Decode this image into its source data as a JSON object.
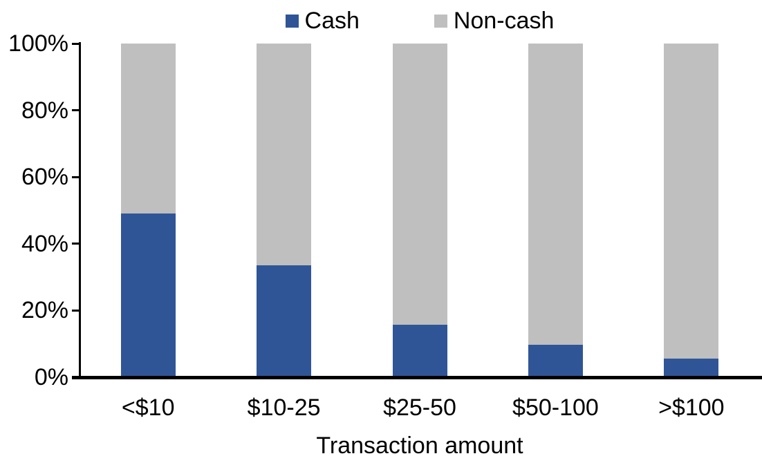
{
  "chart_data": {
    "type": "bar",
    "stacked": true,
    "percent_stacked": true,
    "title": "",
    "xlabel": "Transaction amount",
    "ylabel": "",
    "categories": [
      "<$10",
      "$10-25",
      "$25-50",
      "$50-100",
      ">$100"
    ],
    "series": [
      {
        "name": "Cash",
        "color": "#2F5597",
        "values": [
          49,
          33.5,
          15.7,
          9.7,
          5.6
        ]
      },
      {
        "name": "Non-cash",
        "color": "#BFBFBF",
        "values": [
          51,
          66.5,
          84.3,
          90.3,
          94.4
        ]
      }
    ],
    "ylim": [
      0,
      100
    ],
    "yticks": [
      0,
      20,
      40,
      60,
      80,
      100
    ],
    "ytick_labels": [
      "0%",
      "20%",
      "40%",
      "60%",
      "80%",
      "100%"
    ],
    "legend_position": "top-center",
    "grid": false,
    "axis_color": "#000000",
    "text_color": "#000000",
    "background_color": "#FFFFFF"
  }
}
